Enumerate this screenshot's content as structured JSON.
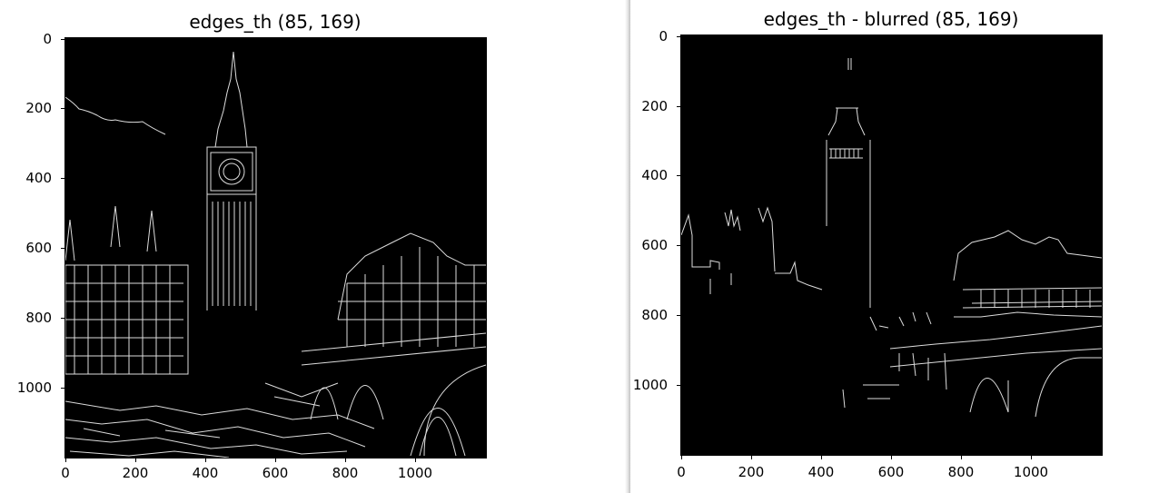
{
  "left_plot": {
    "title": "edges_th (85, 169)",
    "y_ticks": [
      "0",
      "200",
      "400",
      "600",
      "800",
      "1000"
    ],
    "x_ticks": [
      "0",
      "200",
      "400",
      "600",
      "800",
      "1000"
    ],
    "background": "#000000",
    "edge_color": "#dcdcdc"
  },
  "right_plot": {
    "title": "edges_th - blurred (85, 169)",
    "y_ticks": [
      "0",
      "200",
      "400",
      "600",
      "800",
      "1000"
    ],
    "x_ticks": [
      "0",
      "200",
      "400",
      "600",
      "800",
      "1000"
    ],
    "background": "#000000",
    "edge_color": "#dcdcdc"
  }
}
